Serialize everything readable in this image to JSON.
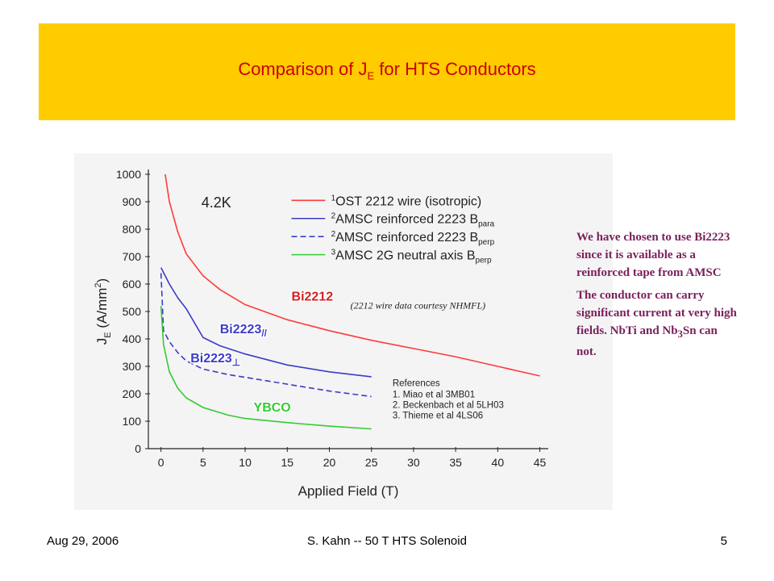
{
  "slide": {
    "title_main": "Comparison of J",
    "title_sub": "E",
    "title_rest": " for HTS Conductors"
  },
  "notes": {
    "para1": "We have chosen to use Bi2223 since it is available as a reinforced tape from AMSC",
    "para2_a": "The conductor can carry significant current at very high fields.  NbTi and Nb",
    "para2_sub": "3",
    "para2_b": "Sn can not."
  },
  "footer": {
    "date": "Aug 29, 2006",
    "center": "S. Kahn -- 50 T HTS Solenoid",
    "page": "5"
  },
  "chart_data": {
    "type": "line",
    "xlabel": "Applied Field (T)",
    "ylabel": "J",
    "ylabel_sub": "E",
    "ylabel_rest": " (A/mm",
    "ylabel_sup": "2",
    "ylabel_end": ")",
    "xlim": [
      -1.5,
      46
    ],
    "ylim": [
      0,
      1000
    ],
    "xticks": [
      0,
      5,
      10,
      15,
      20,
      25,
      30,
      35,
      40,
      45
    ],
    "yticks": [
      0,
      100,
      200,
      300,
      400,
      500,
      600,
      700,
      800,
      900,
      1000
    ],
    "temperature_label": "4.2K",
    "legend_position": "top-right",
    "legend": [
      {
        "sup": "1",
        "text": "OST 2212 wire (isotropic)",
        "sub": "",
        "color": "#ff3b3b",
        "dash": false
      },
      {
        "sup": "2",
        "text": "AMSC reinforced 2223 B",
        "sub": "para",
        "color": "#3c3cc8",
        "dash": false
      },
      {
        "sup": "2",
        "text": "AMSC reinforced 2223 B",
        "sub": "perp",
        "color": "#3c3cc8",
        "dash": true
      },
      {
        "sup": "3",
        "text": "AMSC 2G neutral axis B",
        "sub": "perp",
        "color": "#33cc33",
        "dash": false
      }
    ],
    "series": [
      {
        "name": "Bi2212",
        "color": "#ff3b3b",
        "dash": false,
        "points": [
          [
            0.5,
            1000
          ],
          [
            1,
            900
          ],
          [
            2,
            790
          ],
          [
            3,
            710
          ],
          [
            5,
            630
          ],
          [
            7,
            580
          ],
          [
            10,
            525
          ],
          [
            15,
            470
          ],
          [
            20,
            430
          ],
          [
            25,
            395
          ],
          [
            30,
            365
          ],
          [
            35,
            335
          ],
          [
            40,
            300
          ],
          [
            45,
            265
          ]
        ]
      },
      {
        "name": "Bi2223//",
        "color": "#3c3cc8",
        "dash": false,
        "points": [
          [
            0,
            660
          ],
          [
            0.5,
            630
          ],
          [
            1,
            600
          ],
          [
            2,
            550
          ],
          [
            3,
            510
          ],
          [
            5,
            405
          ],
          [
            7,
            375
          ],
          [
            10,
            345
          ],
          [
            15,
            305
          ],
          [
            20,
            280
          ],
          [
            25,
            262
          ]
        ]
      },
      {
        "name": "Bi2223⊥",
        "color": "#3c3cc8",
        "dash": true,
        "points": [
          [
            0,
            640
          ],
          [
            0.3,
            430
          ],
          [
            1,
            390
          ],
          [
            2,
            350
          ],
          [
            3,
            320
          ],
          [
            5,
            290
          ],
          [
            8,
            270
          ],
          [
            10,
            260
          ],
          [
            15,
            235
          ],
          [
            20,
            210
          ],
          [
            25,
            190
          ]
        ]
      },
      {
        "name": "YBCO",
        "color": "#33cc33",
        "dash": false,
        "points": [
          [
            0,
            520
          ],
          [
            0.3,
            380
          ],
          [
            1,
            280
          ],
          [
            2,
            220
          ],
          [
            3,
            185
          ],
          [
            5,
            150
          ],
          [
            8,
            122
          ],
          [
            10,
            110
          ],
          [
            15,
            95
          ],
          [
            20,
            82
          ],
          [
            25,
            72
          ]
        ]
      }
    ],
    "curve_labels": [
      {
        "text": "Bi2212",
        "sub": "",
        "x": 15.5,
        "y": 540,
        "color": "#d42020",
        "stroke": "#ffffff"
      },
      {
        "text": "Bi2223",
        "sub": "//",
        "x": 7,
        "y": 420,
        "color": "#3c3cc8",
        "stroke": "#ffffff"
      },
      {
        "text": "Bi2223",
        "sub": "⊥",
        "x": 3.5,
        "y": 315,
        "color": "#3c3cc8",
        "stroke": "#ffffff"
      },
      {
        "text": "YBCO",
        "sub": "",
        "x": 11,
        "y": 135,
        "color": "#33cc33",
        "stroke": "#ffffff"
      }
    ],
    "annotations": [
      {
        "text": "(2212 wire data courtesy NHMFL)",
        "x": 22.5,
        "y": 510
      },
      {
        "text": "References",
        "x": 27.5,
        "y": 228
      },
      {
        "text": "1. Miao et al 3MB01",
        "x": 27.5,
        "y": 187
      },
      {
        "text": "2. Beckenbach et al 5LH03",
        "x": 27.5,
        "y": 148
      },
      {
        "text": "3. Thieme et al 4LS06",
        "x": 27.5,
        "y": 110
      }
    ]
  }
}
